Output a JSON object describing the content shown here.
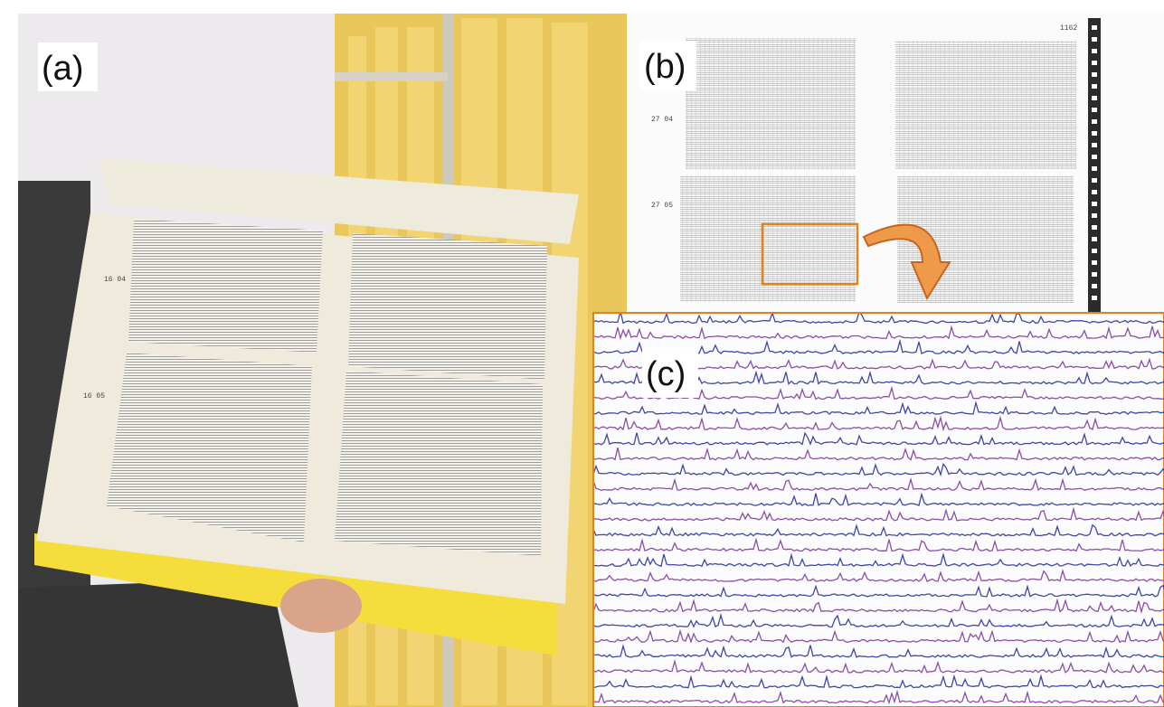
{
  "panels": [
    {
      "label": "(a)",
      "rows": [
        "16 04",
        "16 05"
      ]
    },
    {
      "label": "(b)",
      "rows": [
        "27 04",
        "27 05"
      ],
      "page_number": "1162"
    },
    {
      "label": "(c)"
    }
  ]
}
